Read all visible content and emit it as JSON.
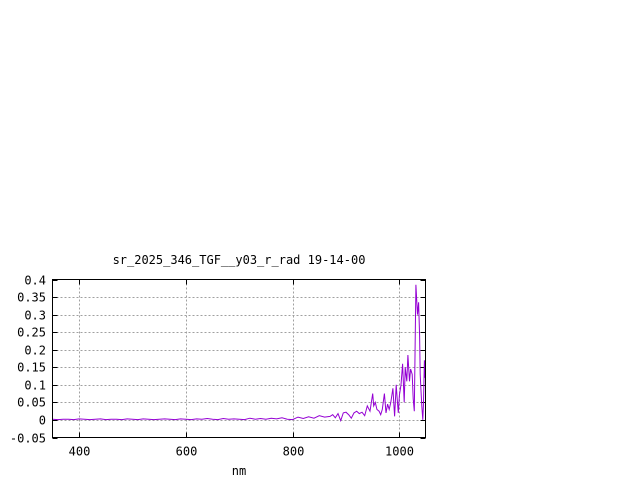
{
  "chart_data": {
    "type": "line",
    "title": "sr_2025_346_TGF__y03_r_rad 19-14-00",
    "xlabel": "nm",
    "ylabel": "",
    "xlim": [
      350,
      1049
    ],
    "ylim": [
      -0.05,
      0.4
    ],
    "xticks": [
      400,
      600,
      800,
      1000
    ],
    "yticks": [
      -0.05,
      0,
      0.05,
      0.1,
      0.15,
      0.2,
      0.25,
      0.3,
      0.35,
      0.4
    ],
    "ytick_labels": [
      "-0.05",
      "0",
      "0.05",
      "0.1",
      "0.15",
      "0.2",
      "0.25",
      "0.3",
      "0.35",
      "0.4"
    ],
    "grid": true,
    "line_color": "#9400d3",
    "series": [
      {
        "x": [
          350,
          360,
          370,
          380,
          390,
          400,
          410,
          420,
          430,
          440,
          450,
          460,
          470,
          480,
          490,
          500,
          510,
          520,
          530,
          540,
          550,
          560,
          570,
          580,
          590,
          600,
          610,
          620,
          630,
          640,
          650,
          660,
          670,
          680,
          690,
          700,
          710,
          720,
          730,
          740,
          750,
          760,
          770,
          780,
          790,
          800,
          810,
          820,
          830,
          840,
          850,
          860,
          870,
          875,
          880,
          885,
          890,
          895,
          900,
          905,
          910,
          915,
          920,
          925,
          930,
          935,
          940,
          945,
          950,
          952,
          955,
          958,
          962,
          965,
          968,
          972,
          975,
          978,
          981,
          984,
          988,
          991,
          994,
          996,
          998,
          1000,
          1003,
          1006,
          1009,
          1011,
          1014,
          1016,
          1019,
          1021,
          1024,
          1026,
          1028,
          1031,
          1034,
          1036,
          1038,
          1039,
          1040,
          1042,
          1044,
          1045,
          1047,
          1048,
          1049
        ],
        "y": [
          0.002,
          0.001,
          0.002,
          0.002,
          0.001,
          0.003,
          0.002,
          0.001,
          0.002,
          0.003,
          0.001,
          0.002,
          0.002,
          0.001,
          0.003,
          0.002,
          0.001,
          0.003,
          0.002,
          0.001,
          0.002,
          0.003,
          0.002,
          0.001,
          0.003,
          0.002,
          0.001,
          0.003,
          0.002,
          0.004,
          0.002,
          0.001,
          0.004,
          0.002,
          0.003,
          0.002,
          0.001,
          0.005,
          0.002,
          0.004,
          0.002,
          0.005,
          0.003,
          0.006,
          0.002,
          0.001,
          0.008,
          0.004,
          0.009,
          0.005,
          0.012,
          0.008,
          0.01,
          0.015,
          0.006,
          0.018,
          -0.002,
          0.02,
          0.022,
          0.015,
          0.005,
          0.02,
          0.025,
          0.018,
          0.022,
          0.012,
          0.04,
          0.025,
          0.075,
          0.04,
          0.05,
          0.03,
          0.025,
          0.015,
          0.03,
          0.075,
          0.02,
          0.045,
          0.03,
          0.05,
          0.09,
          0.01,
          0.1,
          0.06,
          0.02,
          0.07,
          0.1,
          0.16,
          0.05,
          0.15,
          0.11,
          0.185,
          0.11,
          0.145,
          0.13,
          0.06,
          0.025,
          0.385,
          0.3,
          0.335,
          0.24,
          0.13,
          0.1,
          0.04,
          0.0,
          0.04,
          0.17,
          0.12,
          0.17
        ]
      }
    ]
  }
}
